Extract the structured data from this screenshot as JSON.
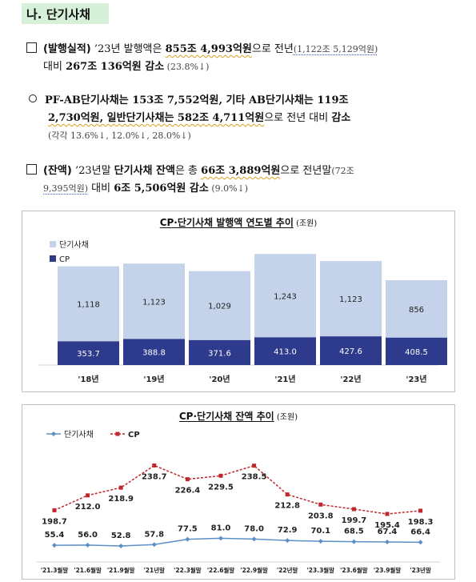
{
  "section": {
    "label": "나. 단기사채"
  },
  "p1": {
    "tag": "(발행실적)",
    "t1": " ’23년 발행액은 ",
    "v1": "855조 4,993억원",
    "t2": "으로 전년",
    "prev": "(1,122조 5,129억원)",
    "t3": "대비 ",
    "v2": "267조 136억원 감소",
    "pct": " (23.8%↓)"
  },
  "p2": {
    "t1": "PF-AB단기사채는 153조 7,552억원, 기타 AB단기사채는 119조",
    "t2a": "2,730억원, 일반단기사채는 582조 4,711억원",
    "t2b": "으로 전년 대비 ",
    "t2c": "감소",
    "t3": "(각각 13.6%↓, 12.0%↓, 28.0%↓)"
  },
  "p3": {
    "tag": "(잔액)",
    "t1": " ’23년말 ",
    "v1": "단기사채 잔액",
    "t2": "은 총 ",
    "v2": "66조 3,889억원",
    "t3": "으로 전년말",
    "prev1": "(72조",
    "prev2": "9,395억원)",
    "t4": " 대비 ",
    "v3": "6조 5,506억원 감소",
    "pct": " (9.0%↓)"
  },
  "chart1_title": {
    "main": "CP·단기사채 발행액 연도별 추이",
    "unit": " (조원)"
  },
  "chart2_title": {
    "main": "CP·단기사채 잔액 추이",
    "unit": " (조원)"
  },
  "chart_data": [
    {
      "type": "bar",
      "title": "CP·단기사채 발행액 연도별 추이 (조원)",
      "categories": [
        "'18년",
        "'19년",
        "'20년",
        "'21년",
        "'22년",
        "'23년"
      ],
      "series": [
        {
          "name": "CP",
          "values": [
            353.7,
            388.8,
            371.6,
            413.0,
            427.6,
            408.5
          ],
          "color": "#2e3a8c"
        },
        {
          "name": "단기사채",
          "values": [
            1118,
            1123,
            1029,
            1243,
            1123,
            856
          ],
          "color": "#c5d3ea"
        }
      ],
      "stacked": true,
      "legend": "top-left"
    },
    {
      "type": "line",
      "title": "CP·단기사채 잔액 추이 (조원)",
      "categories": [
        "'21.3월말",
        "'21.6월말",
        "'21.9월말",
        "'21년말",
        "'22.3월말",
        "'22.6월말",
        "'22.9월말",
        "'22년말",
        "'23.3월말",
        "'23.6월말",
        "'23.9월말",
        "'23년말"
      ],
      "series": [
        {
          "name": "단기사채",
          "values": [
            55.4,
            56.0,
            52.8,
            57.8,
            77.5,
            81.0,
            78.0,
            72.9,
            70.1,
            68.5,
            67.4,
            66.4
          ],
          "color": "#5b8fc7"
        },
        {
          "name": "CP",
          "values": [
            198.7,
            212.0,
            218.9,
            238.7,
            226.4,
            229.5,
            238.5,
            212.8,
            203.8,
            199.7,
            195.4,
            198.3
          ],
          "color": "#c0262c"
        }
      ],
      "legend": "top-left"
    }
  ]
}
